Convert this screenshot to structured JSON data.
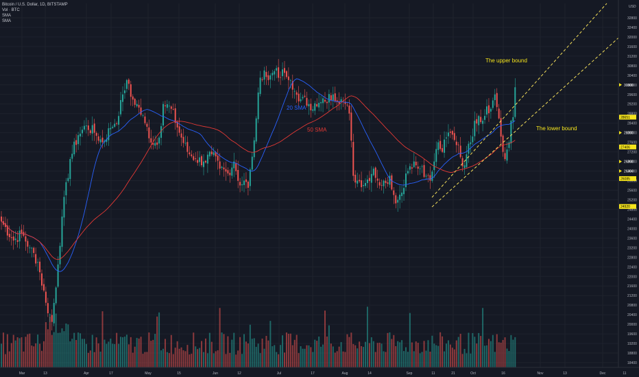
{
  "legend": {
    "symbol": "Bitcoin / U.S. Dollar, 1D, BITSTAMP",
    "volume": "Vol · BTC",
    "sma1": "SMA",
    "sma2": "SMA"
  },
  "currency_label": "USD",
  "annotations": {
    "upper": "The upper bound",
    "lower": "The lower bound",
    "sma20": "20 SMA",
    "sma50": "50 SMA"
  },
  "colors": {
    "up": "#26a69a",
    "down": "#ef5350",
    "sma20": "#2962ff",
    "sma50": "#e53935",
    "trend": "#f6e15b",
    "tag": "#f5e41d"
  },
  "chart_data": {
    "type": "candlestick",
    "price_range": [
      18200,
      33400
    ],
    "price_ticks": [
      "32800",
      "32400",
      "32000",
      "31600",
      "31200",
      "30800",
      "30400",
      "30000",
      "29600",
      "29200",
      "28800",
      "28400",
      "28000",
      "27600",
      "27200",
      "26800",
      "26400",
      "26000",
      "25600",
      "25200",
      "24800",
      "24400",
      "24000",
      "23600",
      "23200",
      "22800",
      "22400",
      "22000",
      "21600",
      "21200",
      "20800",
      "20400",
      "20000",
      "19600",
      "19200",
      "18800",
      "18400"
    ],
    "time_ticks": [
      "Mar",
      "13",
      "Apr",
      "17",
      "May",
      "15",
      "Jun",
      "12",
      "Jul",
      "17",
      "Aug",
      "14",
      "Sep",
      "11",
      "21",
      "Oct",
      "16",
      "Nov",
      "13",
      "Dec",
      "11"
    ],
    "price_tags": [
      {
        "label": "30000",
        "value": 30000,
        "style": "arrow"
      },
      {
        "label": "28651",
        "value": 28651,
        "style": "box"
      },
      {
        "label": "28000",
        "value": 28000,
        "style": "arrow"
      },
      {
        "label": "27406",
        "value": 27406,
        "style": "box"
      },
      {
        "label": "26800",
        "value": 26800,
        "style": "arrow"
      },
      {
        "label": "26400",
        "value": 26400,
        "style": "arrow"
      },
      {
        "label": "26085",
        "value": 26085,
        "style": "box"
      },
      {
        "label": "24920",
        "value": 24920,
        "style": "box"
      }
    ],
    "anchors": [
      [
        0,
        24300
      ],
      [
        6,
        23500
      ],
      [
        10,
        23800
      ],
      [
        14,
        23200
      ],
      [
        18,
        22600
      ],
      [
        22,
        20900
      ],
      [
        25,
        20100
      ],
      [
        28,
        22500
      ],
      [
        30,
        24500
      ],
      [
        34,
        26900
      ],
      [
        38,
        27900
      ],
      [
        42,
        28300
      ],
      [
        46,
        28000
      ],
      [
        50,
        27600
      ],
      [
        54,
        28200
      ],
      [
        58,
        28700
      ],
      [
        60,
        29600
      ],
      [
        62,
        30200
      ],
      [
        64,
        29500
      ],
      [
        67,
        29200
      ],
      [
        71,
        28400
      ],
      [
        75,
        27500
      ],
      [
        78,
        27800
      ],
      [
        80,
        29200
      ],
      [
        84,
        29000
      ],
      [
        88,
        28000
      ],
      [
        92,
        27200
      ],
      [
        96,
        26900
      ],
      [
        100,
        26800
      ],
      [
        104,
        27100
      ],
      [
        108,
        26500
      ],
      [
        112,
        26300
      ],
      [
        115,
        26800
      ],
      [
        118,
        25800
      ],
      [
        120,
        26000
      ],
      [
        122,
        25700
      ],
      [
        124,
        27000
      ],
      [
        126,
        28600
      ],
      [
        128,
        30300
      ],
      [
        130,
        30600
      ],
      [
        132,
        30200
      ],
      [
        134,
        30500
      ],
      [
        136,
        30700
      ],
      [
        138,
        30300
      ],
      [
        140,
        30500
      ],
      [
        142,
        30200
      ],
      [
        144,
        29800
      ],
      [
        148,
        29400
      ],
      [
        152,
        29200
      ],
      [
        156,
        29100
      ],
      [
        160,
        29300
      ],
      [
        164,
        29600
      ],
      [
        168,
        29400
      ],
      [
        170,
        29200
      ],
      [
        172,
        28800
      ],
      [
        174,
        26200
      ],
      [
        176,
        26000
      ],
      [
        180,
        25900
      ],
      [
        184,
        26500
      ],
      [
        186,
        26000
      ],
      [
        188,
        25800
      ],
      [
        190,
        25900
      ],
      [
        192,
        26200
      ],
      [
        194,
        25400
      ],
      [
        196,
        25200
      ],
      [
        198,
        25500
      ],
      [
        200,
        26300
      ],
      [
        202,
        26600
      ],
      [
        204,
        26800
      ],
      [
        206,
        26500
      ],
      [
        208,
        26600
      ],
      [
        210,
        26200
      ],
      [
        212,
        26000
      ],
      [
        214,
        26800
      ],
      [
        216,
        27600
      ],
      [
        218,
        27200
      ],
      [
        220,
        27800
      ],
      [
        222,
        28000
      ],
      [
        224,
        27700
      ],
      [
        226,
        27500
      ],
      [
        228,
        26600
      ],
      [
        230,
        27100
      ],
      [
        232,
        27600
      ],
      [
        234,
        28500
      ],
      [
        236,
        28700
      ],
      [
        238,
        28500
      ],
      [
        240,
        29100
      ],
      [
        242,
        29000
      ],
      [
        244,
        29600
      ],
      [
        246,
        28600
      ],
      [
        248,
        27200
      ],
      [
        249,
        26900
      ],
      [
        250,
        27300
      ],
      [
        251,
        27600
      ],
      [
        252,
        28500
      ],
      [
        253,
        28650
      ],
      [
        254,
        29900
      ]
    ],
    "volume_range": [
      0,
      1000
    ],
    "sma20_label": "20 SMA",
    "sma50_label": "50 SMA"
  }
}
